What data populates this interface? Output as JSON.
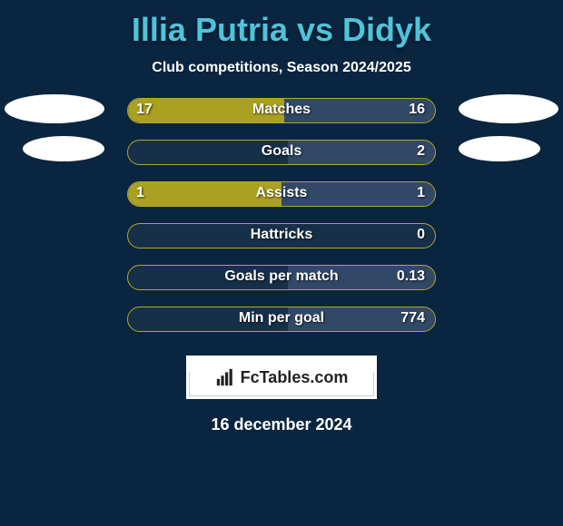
{
  "title": "Illia Putria vs Didyk",
  "subtitle": "Club competitions, Season 2024/2025",
  "brand": "FcTables.com",
  "date": "16 december 2024",
  "colors": {
    "background": "#0a2540",
    "title": "#4fc3d9",
    "bar_fill": "#aaa021",
    "bar_border": "#b5a726",
    "bar_right_bg": "rgba(100,120,160,.35)",
    "text": "#ffffff"
  },
  "badges": {
    "show_row0": true,
    "show_row1": true
  },
  "stats": [
    {
      "label": "Matches",
      "left_val": "17",
      "right_val": "16",
      "left_pct": 51,
      "right_pct": 49
    },
    {
      "label": "Goals",
      "left_val": "",
      "right_val": "2",
      "left_pct": 0,
      "right_pct": 48
    },
    {
      "label": "Assists",
      "left_val": "1",
      "right_val": "1",
      "left_pct": 50,
      "right_pct": 50
    },
    {
      "label": "Hattricks",
      "left_val": "",
      "right_val": "0",
      "left_pct": 0,
      "right_pct": 0
    },
    {
      "label": "Goals per match",
      "left_val": "",
      "right_val": "0.13",
      "left_pct": 0,
      "right_pct": 48
    },
    {
      "label": "Min per goal",
      "left_val": "",
      "right_val": "774",
      "left_pct": 0,
      "right_pct": 48
    }
  ]
}
